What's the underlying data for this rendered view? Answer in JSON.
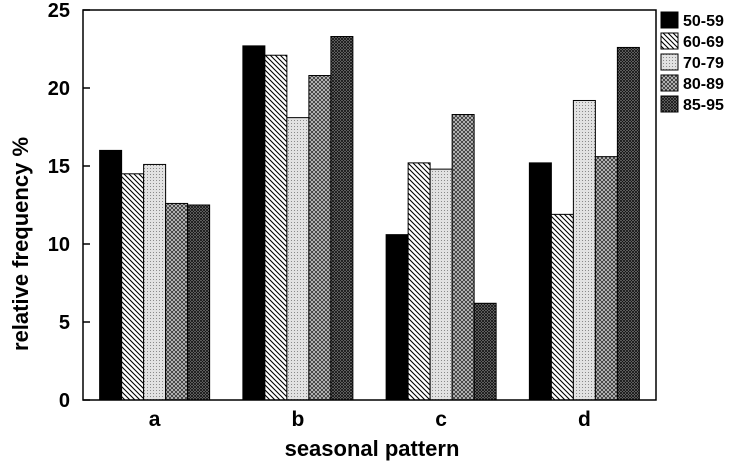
{
  "chart_data": {
    "type": "bar",
    "categories": [
      "a",
      "b",
      "c",
      "d"
    ],
    "series": [
      {
        "name": "50-59",
        "values": [
          16.0,
          22.7,
          10.6,
          15.2
        ],
        "pattern": "solid"
      },
      {
        "name": "60-69",
        "values": [
          14.5,
          22.1,
          15.2,
          11.9
        ],
        "pattern": "diagonal"
      },
      {
        "name": "70-79",
        "values": [
          15.1,
          18.1,
          14.8,
          19.2
        ],
        "pattern": "light-dots"
      },
      {
        "name": "80-89",
        "values": [
          12.6,
          20.8,
          18.3,
          15.6
        ],
        "pattern": "crosshatch"
      },
      {
        "name": "85-95",
        "values": [
          12.5,
          23.3,
          6.2,
          22.6
        ],
        "pattern": "dense-crosshatch"
      }
    ],
    "title": "",
    "xlabel": "seasonal pattern",
    "ylabel": "relative frequency %",
    "ylim": [
      0,
      25
    ],
    "yticks": [
      "0",
      "5",
      "10",
      "15",
      "20",
      "25"
    ],
    "grid": false,
    "legend_position": "right",
    "colors": {
      "ink": "#000000",
      "background": "#ffffff"
    }
  }
}
